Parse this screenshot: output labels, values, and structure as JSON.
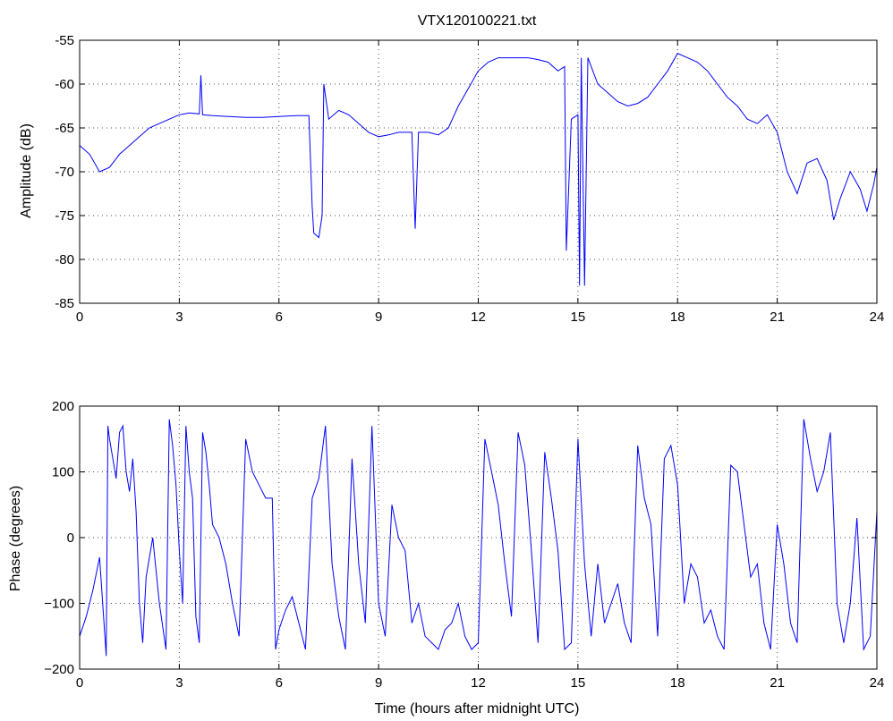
{
  "chart_data": [
    {
      "type": "line",
      "title": "VTX120100221.txt",
      "xlabel": "",
      "ylabel": "Amplitude (dB)",
      "xlim": [
        0,
        24
      ],
      "ylim": [
        -85,
        -55
      ],
      "xticks": [
        "0",
        "3",
        "6",
        "9",
        "12",
        "15",
        "18",
        "21",
        "24"
      ],
      "yticks": [
        "-55",
        "-60",
        "-65",
        "-70",
        "-75",
        "-80",
        "-85"
      ],
      "grid": true,
      "color": "#0000ff",
      "series": [
        {
          "x": [
            0.0,
            0.3,
            0.6,
            0.9,
            1.2,
            1.5,
            1.8,
            2.1,
            2.4,
            2.7,
            3.0,
            3.3,
            3.6,
            3.65,
            3.7,
            4.0,
            4.5,
            5.0,
            5.5,
            6.0,
            6.5,
            6.9,
            7.0,
            7.05,
            7.2,
            7.3,
            7.35,
            7.5,
            7.8,
            8.1,
            8.4,
            8.7,
            9.0,
            9.3,
            9.6,
            10.0,
            10.1,
            10.2,
            10.5,
            10.8,
            11.1,
            11.4,
            11.7,
            12.0,
            12.3,
            12.6,
            12.9,
            13.2,
            13.5,
            13.8,
            14.1,
            14.4,
            14.6,
            14.65,
            14.8,
            15.0,
            15.05,
            15.1,
            15.2,
            15.3,
            15.6,
            15.9,
            16.2,
            16.5,
            16.8,
            17.1,
            17.4,
            17.7,
            18.0,
            18.3,
            18.6,
            18.9,
            19.2,
            19.5,
            19.8,
            20.1,
            20.4,
            20.7,
            21.0,
            21.3,
            21.6,
            21.9,
            22.2,
            22.5,
            22.7,
            22.9,
            23.2,
            23.5,
            23.7,
            23.9,
            24.0
          ],
          "y": [
            -67,
            -68,
            -70,
            -69.5,
            -68,
            -67,
            -66,
            -65,
            -64.5,
            -64,
            -63.5,
            -63.3,
            -63.4,
            -59,
            -63.5,
            -63.6,
            -63.7,
            -63.8,
            -63.8,
            -63.7,
            -63.6,
            -63.6,
            -74,
            -77,
            -77.5,
            -75,
            -60,
            -64,
            -63,
            -63.5,
            -64.5,
            -65.5,
            -66,
            -65.8,
            -65.5,
            -65.5,
            -76.5,
            -65.5,
            -65.5,
            -65.8,
            -65,
            -62.5,
            -60.5,
            -58.5,
            -57.5,
            -57,
            -57,
            -57,
            -57,
            -57.2,
            -57.5,
            -58.5,
            -58,
            -79,
            -64,
            -63.5,
            -83,
            -57,
            -83,
            -57,
            -60,
            -61,
            -62,
            -62.5,
            -62.2,
            -61.5,
            -60,
            -58.5,
            -56.5,
            -57,
            -57.5,
            -58.5,
            -60,
            -61.5,
            -62.5,
            -64,
            -64.5,
            -63.5,
            -65.5,
            -70,
            -72.5,
            -69,
            -68.5,
            -71,
            -75.5,
            -73,
            -70,
            -72,
            -74.5,
            -71.5,
            -69.5
          ]
        }
      ]
    },
    {
      "type": "line",
      "title": "",
      "xlabel": "Time (hours after midnight UTC)",
      "ylabel": "Phase (degrees)",
      "xlim": [
        0,
        24
      ],
      "ylim": [
        -200,
        200
      ],
      "xticks": [
        "0",
        "3",
        "6",
        "9",
        "12",
        "15",
        "18",
        "21",
        "24"
      ],
      "yticks": [
        "200",
        "100",
        "0",
        "−100",
        "−200"
      ],
      "grid": true,
      "color": "#0000ff",
      "series": [
        {
          "x": [
            0.0,
            0.2,
            0.4,
            0.6,
            0.8,
            0.85,
            0.9,
            1.0,
            1.1,
            1.2,
            1.3,
            1.4,
            1.5,
            1.6,
            1.7,
            1.8,
            1.9,
            2.0,
            2.2,
            2.4,
            2.6,
            2.7,
            2.8,
            2.9,
            3.0,
            3.1,
            3.2,
            3.3,
            3.4,
            3.5,
            3.6,
            3.7,
            3.8,
            3.9,
            4.0,
            4.2,
            4.4,
            4.6,
            4.8,
            5.0,
            5.2,
            5.4,
            5.6,
            5.8,
            5.9,
            6.0,
            6.2,
            6.4,
            6.6,
            6.8,
            7.0,
            7.2,
            7.4,
            7.6,
            7.8,
            8.0,
            8.2,
            8.4,
            8.6,
            8.8,
            9.0,
            9.2,
            9.4,
            9.6,
            9.8,
            10.0,
            10.2,
            10.4,
            10.6,
            10.8,
            11.0,
            11.2,
            11.4,
            11.6,
            11.8,
            12.0,
            12.2,
            12.4,
            12.6,
            12.8,
            13.0,
            13.2,
            13.4,
            13.6,
            13.8,
            14.0,
            14.2,
            14.4,
            14.6,
            14.8,
            15.0,
            15.2,
            15.4,
            15.6,
            15.8,
            16.0,
            16.2,
            16.4,
            16.6,
            16.8,
            17.0,
            17.2,
            17.4,
            17.6,
            17.8,
            18.0,
            18.2,
            18.4,
            18.6,
            18.8,
            19.0,
            19.2,
            19.4,
            19.6,
            19.8,
            20.0,
            20.2,
            20.4,
            20.6,
            20.8,
            21.0,
            21.2,
            21.4,
            21.6,
            21.8,
            22.0,
            22.2,
            22.4,
            22.6,
            22.8,
            23.0,
            23.2,
            23.4,
            23.6,
            23.8,
            24.0
          ],
          "y": [
            -150,
            -120,
            -80,
            -30,
            -180,
            170,
            150,
            120,
            90,
            160,
            170,
            100,
            70,
            120,
            40,
            -100,
            -160,
            -60,
            0,
            -100,
            -170,
            180,
            140,
            80,
            -20,
            -100,
            170,
            100,
            60,
            -120,
            -160,
            160,
            130,
            80,
            20,
            0,
            -40,
            -100,
            -150,
            150,
            100,
            80,
            60,
            60,
            -170,
            -140,
            -110,
            -90,
            -130,
            -170,
            60,
            90,
            170,
            -40,
            -120,
            -170,
            120,
            -40,
            -130,
            170,
            -100,
            -150,
            50,
            0,
            -20,
            -130,
            -100,
            -150,
            -160,
            -170,
            -140,
            -130,
            -100,
            -150,
            -170,
            -160,
            150,
            100,
            50,
            -40,
            -120,
            160,
            110,
            -20,
            -160,
            130,
            60,
            -20,
            -170,
            -160,
            150,
            -40,
            -150,
            -40,
            -130,
            -100,
            -70,
            -130,
            -160,
            140,
            60,
            20,
            -150,
            120,
            140,
            80,
            -100,
            -40,
            -60,
            -130,
            -110,
            -150,
            -170,
            110,
            100,
            20,
            -60,
            -40,
            -130,
            -170,
            20,
            -40,
            -130,
            -160,
            180,
            120,
            70,
            100,
            160,
            -100,
            -160,
            -100,
            30,
            -170,
            -150,
            40
          ]
        }
      ]
    }
  ]
}
